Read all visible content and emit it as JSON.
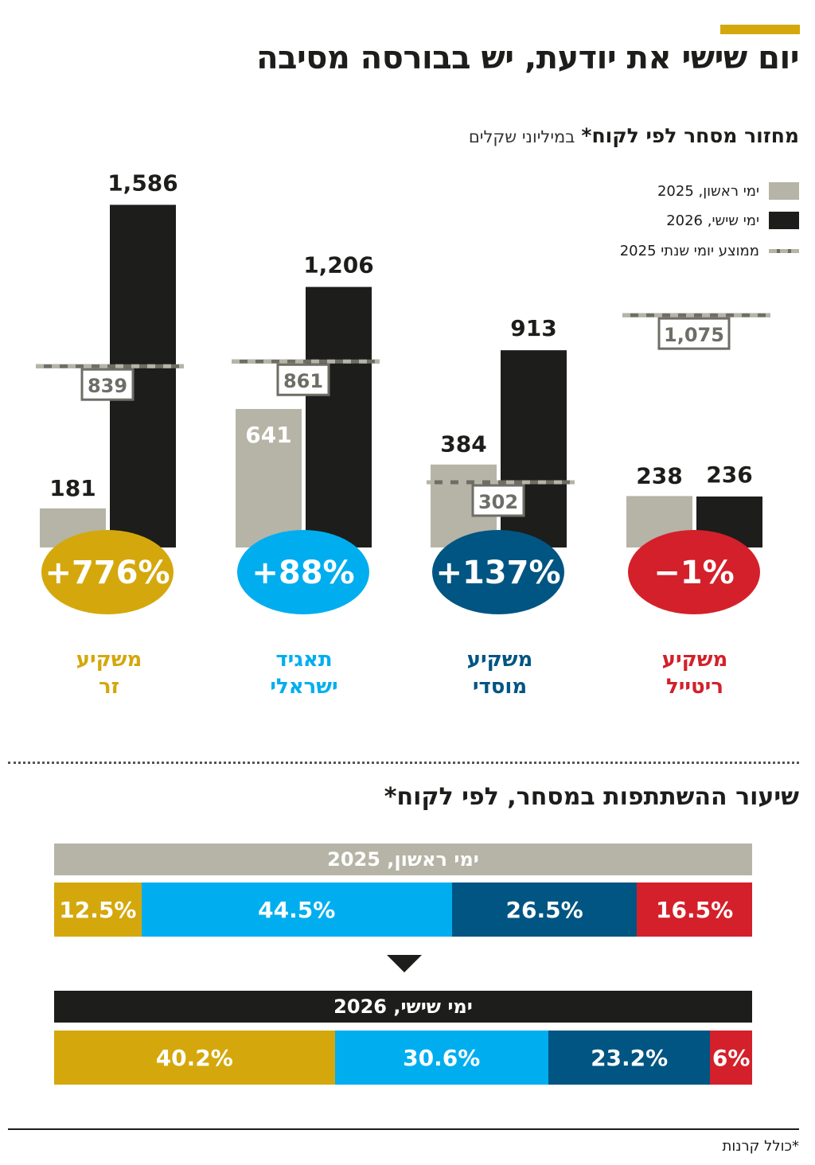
{
  "title": "יום שישי את יודעת, יש בבורסה מסיבה",
  "subtitle": {
    "main": "מחזור מסחר לפי לקוח*",
    "unit": "במיליוני שקלים"
  },
  "legend": [
    {
      "label": "ימי ראשון, 2025",
      "color": "#b5b4a6",
      "kind": "box"
    },
    {
      "label": "ימי שישי, 2026",
      "color": "#1d1d1b",
      "kind": "box"
    },
    {
      "label": "ממוצע יומי שנתי 2025",
      "color": "#6e6e66",
      "kind": "dashed-line"
    }
  ],
  "chart_data": [
    {
      "type": "bar",
      "series": [
        {
          "name": "ימי ראשון, 2025",
          "values": [
            181,
            641,
            384,
            238
          ],
          "color": "#b5b4a6"
        },
        {
          "name": "ימי שישי, 2026",
          "values": [
            1586,
            1206,
            913,
            236
          ],
          "color": "#1d1d1b"
        },
        {
          "name": "ממוצע יומי שנתי 2025",
          "values": [
            839,
            861,
            302,
            1075
          ],
          "color": "#6e6e66"
        }
      ],
      "value_labels": {
        "sunday": [
          "181",
          "641",
          "384",
          "238"
        ],
        "friday": [
          "1,586",
          "1,206",
          "913",
          "236"
        ],
        "average": [
          "839",
          "861",
          "302",
          "1,075"
        ]
      },
      "categories": [
        {
          "line1": "משקיע",
          "line2": "זר",
          "color": "#d4a80c"
        },
        {
          "line1": "תאגיד",
          "line2": "ישראלי",
          "color": "#00aeef"
        },
        {
          "line1": "משקיע",
          "line2": "מוסדי",
          "color": "#005582"
        },
        {
          "line1": "משקיע",
          "line2": "ריטייל",
          "color": "#d4202a"
        }
      ],
      "changes": [
        "+776%",
        "+88%",
        "+137%",
        "−1%"
      ],
      "ylim": [
        0,
        1700
      ],
      "grid": false
    },
    {
      "type": "bar",
      "orientation": "horizontal-stacked",
      "title": "שיעור ההשתתפות במסחר, לפי לקוח*",
      "rows": [
        {
          "label": "ימי ראשון, 2025",
          "header_color": "#b5b4a6",
          "segments": [
            {
              "value": 12.5,
              "label": "12.5%",
              "color": "#d4a80c"
            },
            {
              "value": 44.5,
              "label": "44.5%",
              "color": "#00aeef"
            },
            {
              "value": 26.5,
              "label": "26.5%",
              "color": "#005582"
            },
            {
              "value": 16.5,
              "label": "16.5%",
              "color": "#d4202a"
            }
          ]
        },
        {
          "label": "ימי שישי, 2026",
          "header_color": "#1d1d1b",
          "segments": [
            {
              "value": 40.2,
              "label": "40.2%",
              "color": "#d4a80c"
            },
            {
              "value": 30.6,
              "label": "30.6%",
              "color": "#00aeef"
            },
            {
              "value": 23.2,
              "label": "23.2%",
              "color": "#005582"
            },
            {
              "value": 6,
              "label": "6%",
              "color": "#d4202a"
            }
          ]
        }
      ]
    }
  ],
  "footnote": "*כולל קרנות"
}
